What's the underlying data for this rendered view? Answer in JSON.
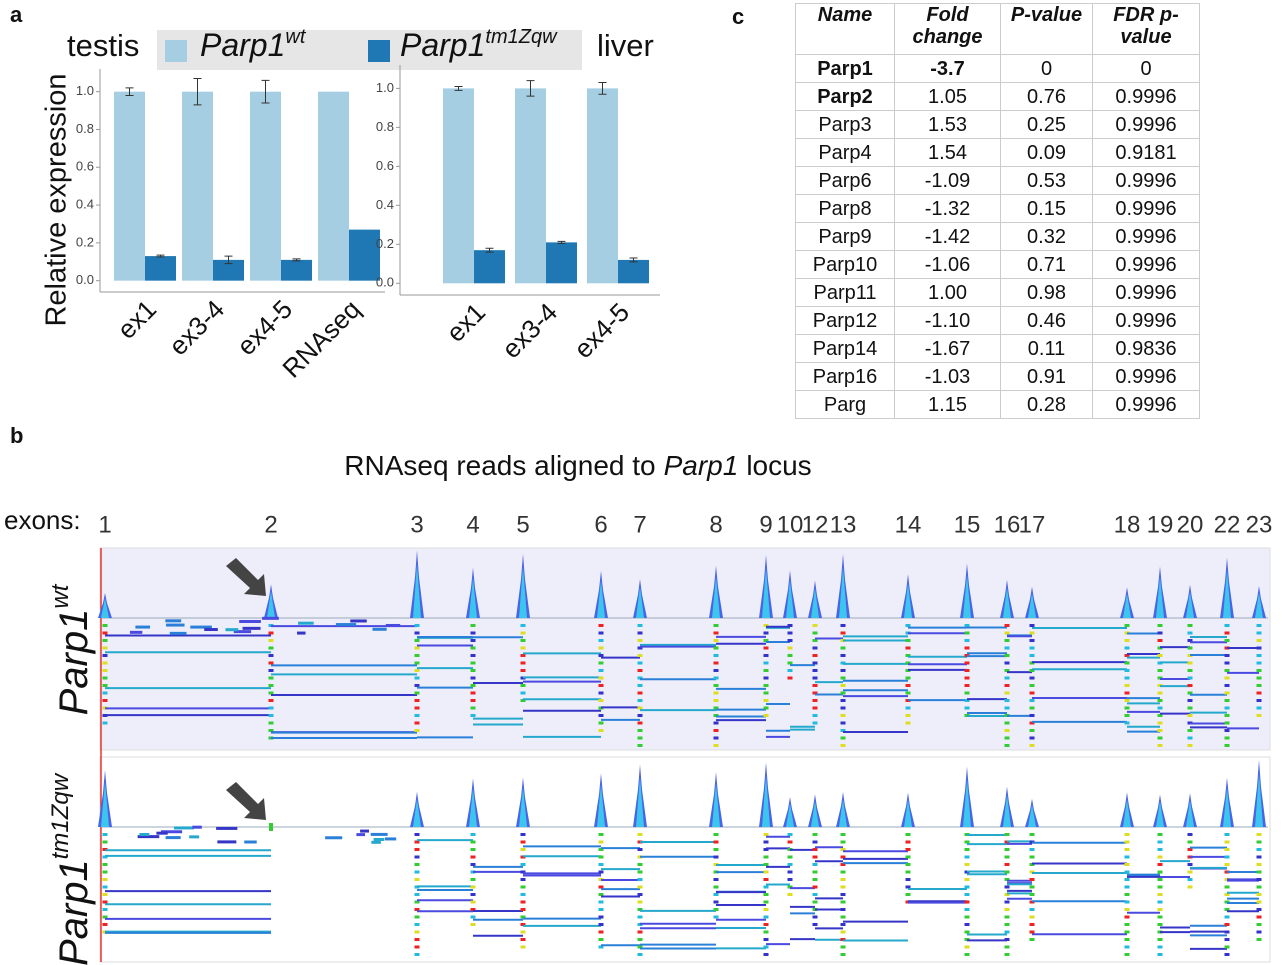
{
  "panel_labels": [
    "a",
    "b",
    "c"
  ],
  "chart_data": [
    {
      "type": "bar",
      "title": "testis",
      "y_label": "Relative expression",
      "categories": [
        "ex1",
        "ex3-4",
        "ex4-5",
        "RNAseq"
      ],
      "series": [
        {
          "name": "Parp1",
          "name_sup": "wt",
          "color": "#a6cee3",
          "values": [
            1,
            1,
            1,
            1
          ],
          "errors": [
            0.02,
            0.07,
            0.06,
            null
          ]
        },
        {
          "name": "Parp1",
          "name_sup": "tm1Zqw",
          "color": "#1f78b4",
          "values": [
            0.13,
            0.11,
            0.11,
            0.27
          ],
          "errors": [
            0.005,
            0.02,
            0.005,
            null
          ]
        }
      ],
      "ylim": [
        -0.06,
        1.12
      ],
      "yticks": [
        {
          "value": 0,
          "label": "0.0"
        },
        0.2,
        0.4,
        0.6,
        0.8,
        {
          "value": 1,
          "label": "1.0"
        }
      ]
    },
    {
      "type": "bar",
      "title": "liver",
      "categories": [
        "ex1",
        "ex3-4",
        "ex4-5"
      ],
      "series": [
        {
          "color": "#a6cee3",
          "values": [
            1,
            1,
            1
          ],
          "errors": [
            0.01,
            0.04,
            0.03
          ]
        },
        {
          "color": "#1f78b4",
          "values": [
            0.17,
            0.21,
            0.12
          ],
          "errors": [
            0.01,
            0.005,
            0.01
          ]
        }
      ],
      "ylim": [
        -0.06,
        1.12
      ],
      "yticks": [
        {
          "value": 0,
          "label": "0.0"
        },
        0.2,
        0.4,
        0.6,
        0.8,
        {
          "value": 1,
          "label": "1.0"
        }
      ]
    }
  ],
  "table": {
    "header": [
      "Name",
      "Fold change",
      "P-value",
      "FDR p-value"
    ],
    "rows": [
      [
        "Parp1",
        "-3.7",
        "0",
        "0"
      ],
      [
        "Parp2",
        "1.05",
        "0.76",
        "0.9996"
      ],
      [
        "Parp3",
        "1.53",
        "0.25",
        "0.9996"
      ],
      [
        "Parp4",
        "1.54",
        "0.09",
        "0.9181"
      ],
      [
        "Parp6",
        "-1.09",
        "0.53",
        "0.9996"
      ],
      [
        "Parp8",
        "-1.32",
        "0.15",
        "0.9996"
      ],
      [
        "Parp9",
        "-1.42",
        "0.32",
        "0.9996"
      ],
      [
        "Parp10",
        "-1.06",
        "0.71",
        "0.9996"
      ],
      [
        "Parp11",
        "1.00",
        "0.98",
        "0.9996"
      ],
      [
        "Parp12",
        "-1.10",
        "0.46",
        "0.9996"
      ],
      [
        "Parp14",
        "-1.67",
        "0.11",
        "0.9836"
      ],
      [
        "Parp16",
        "-1.03",
        "0.91",
        "0.9996"
      ],
      [
        "Parg",
        "1.15",
        "0.28",
        "0.9996"
      ]
    ]
  },
  "locus": {
    "title": [
      "RNAseq reads aligned to",
      "Parp1",
      "locus"
    ],
    "exons_label": "exons:",
    "exons": [
      1,
      2,
      3,
      4,
      5,
      6,
      7,
      8,
      9,
      10,
      12,
      13,
      14,
      15,
      16,
      17,
      18,
      19,
      20,
      22,
      23
    ],
    "tracks": [
      {
        "name": "Parp1",
        "name_sup": "wt"
      },
      {
        "name": "Parp1",
        "name_sup": "tm1Zqw"
      }
    ]
  }
}
